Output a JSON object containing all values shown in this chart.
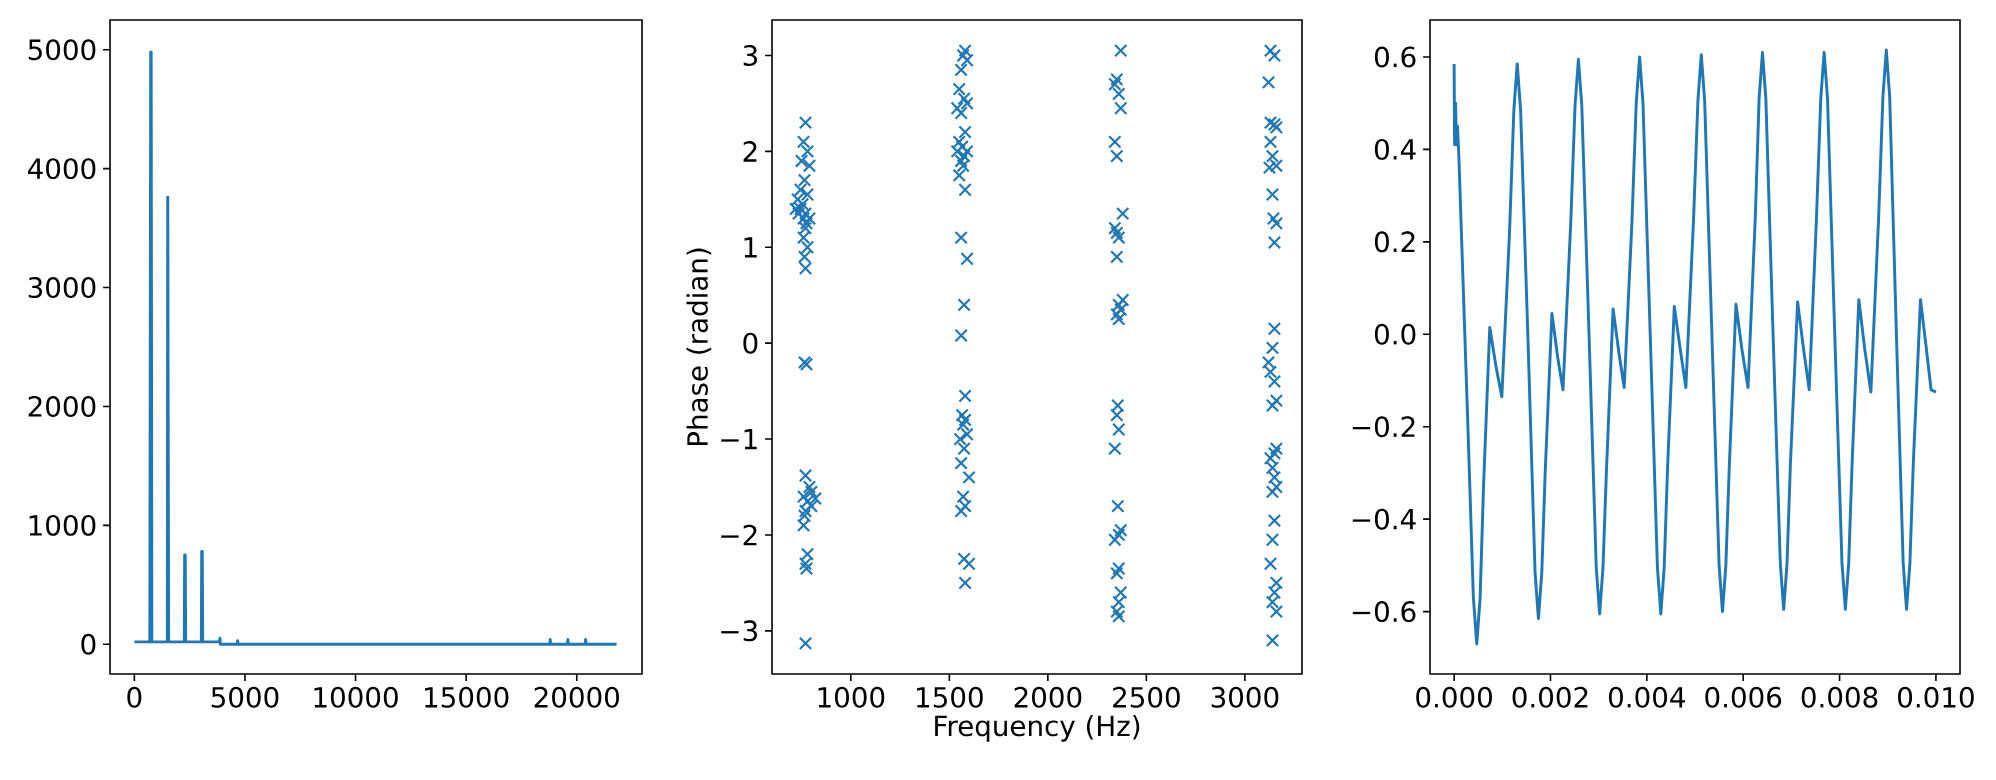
{
  "chart_data": [
    {
      "type": "line",
      "color": "#1f77b4",
      "xlim": [
        -1100,
        22950
      ],
      "ylim": [
        -250,
        5250
      ],
      "xticks": [
        0,
        5000,
        10000,
        15000,
        20000
      ],
      "yticks": [
        0,
        1000,
        2000,
        3000,
        4000,
        5000
      ],
      "x": [
        0,
        700,
        740,
        760,
        790,
        1490,
        1510,
        1530,
        1550,
        2260,
        2275,
        2300,
        2320,
        3030,
        3045,
        3070,
        3090,
        3850,
        3870,
        3890,
        4650,
        4670,
        4690,
        18780,
        18800,
        18820,
        19580,
        19600,
        19620,
        20380,
        20400,
        20420,
        21800
      ],
      "values": [
        20,
        20,
        4980,
        4980,
        20,
        20,
        3760,
        1700,
        20,
        20,
        750,
        750,
        20,
        20,
        780,
        780,
        20,
        20,
        50,
        0,
        0,
        30,
        0,
        0,
        40,
        0,
        0,
        40,
        0,
        0,
        40,
        0,
        0
      ]
    },
    {
      "type": "scatter",
      "marker": "cross",
      "xlabel": "Frequency (Hz)",
      "ylabel": "Phase (radian)",
      "xlim": [
        600,
        3290
      ],
      "ylim": [
        -3.45,
        3.37
      ],
      "xticks": [
        1000,
        1500,
        2000,
        2500,
        3000
      ],
      "yticks": [
        {
          "value": -3,
          "label": "−3"
        },
        {
          "value": -2,
          "label": "−2"
        },
        {
          "value": -1,
          "label": "−1"
        },
        0,
        1,
        2,
        3
      ],
      "series": [
        {
          "color": "#1f77b4",
          "x": [
            770,
            760,
            780,
            750,
            790,
            765,
            745,
            780,
            730,
            755,
            720,
            745,
            770,
            735,
            790,
            760,
            775,
            770,
            760,
            780,
            765,
            770,
            765,
            775,
            770,
            790,
            800,
            760,
            820,
            780,
            800,
            770,
            765,
            760,
            780,
            770,
            775,
            770,
            1580,
            1570,
            1590,
            1560,
            1550,
            1575,
            1590,
            1540,
            1560,
            1580,
            1550,
            1565,
            1590,
            1540,
            1575,
            1560,
            1570,
            1550,
            1580,
            1560,
            1590,
            1575,
            1560,
            1580,
            1565,
            1580,
            1570,
            1590,
            1555,
            1575,
            1560,
            1600,
            1570,
            1580,
            1560,
            1575,
            1600,
            1580,
            2370,
            2350,
            2340,
            2360,
            2370,
            2340,
            2350,
            2380,
            2340,
            2350,
            2360,
            2350,
            2380,
            2360,
            2370,
            2350,
            2360,
            2355,
            2350,
            2360,
            2340,
            2355,
            2370,
            2360,
            2340,
            2360,
            2350,
            2370,
            2360,
            2350,
            2360,
            3130,
            3150,
            3120,
            3130,
            3160,
            3150,
            3130,
            3140,
            3160,
            3125,
            3140,
            3145,
            3160,
            3150,
            3150,
            3140,
            3120,
            3130,
            3150,
            3160,
            3140,
            3160,
            3150,
            3130,
            3140,
            3150,
            3160,
            3140,
            3150,
            3140,
            3130,
            3160,
            3150,
            3140,
            3160,
            3140
          ],
          "values": [
            2.3,
            2.1,
            2.0,
            1.9,
            1.85,
            1.7,
            1.6,
            1.55,
            1.5,
            1.45,
            1.4,
            1.4,
            1.35,
            1.35,
            1.3,
            1.3,
            1.25,
            1.2,
            1.1,
            1.0,
            0.9,
            0.78,
            -0.2,
            -0.22,
            -1.38,
            -1.5,
            -1.55,
            -1.6,
            -1.62,
            -1.65,
            -1.7,
            -1.75,
            -1.8,
            -1.9,
            -2.2,
            -2.3,
            -2.35,
            -3.13,
            3.05,
            3.0,
            2.95,
            2.85,
            2.65,
            2.55,
            2.5,
            2.45,
            2.4,
            2.2,
            2.1,
            2.05,
            2.0,
            2.0,
            1.95,
            1.9,
            1.85,
            1.75,
            1.6,
            1.1,
            0.88,
            0.4,
            0.08,
            -0.55,
            -0.75,
            -0.8,
            -0.85,
            -0.95,
            -1.0,
            -1.1,
            -1.25,
            -1.4,
            -1.6,
            -1.7,
            -1.75,
            -2.25,
            -2.3,
            -2.5,
            3.05,
            2.75,
            2.7,
            2.6,
            2.45,
            2.1,
            1.95,
            1.35,
            1.2,
            1.15,
            1.1,
            0.9,
            0.45,
            0.4,
            0.35,
            0.3,
            0.25,
            -0.65,
            -0.75,
            -0.9,
            -1.1,
            -1.7,
            -1.95,
            -2.0,
            -2.05,
            -2.35,
            -2.4,
            -2.6,
            -2.7,
            -2.8,
            -2.85,
            3.05,
            3.0,
            2.72,
            2.3,
            2.25,
            2.28,
            2.1,
            1.95,
            1.85,
            1.83,
            1.55,
            1.3,
            1.25,
            1.05,
            0.15,
            -0.05,
            -0.2,
            -0.3,
            -0.4,
            -0.6,
            -0.65,
            -1.1,
            -1.15,
            -1.2,
            -1.3,
            -1.4,
            -1.5,
            -1.55,
            -1.85,
            -2.05,
            -2.3,
            -2.5,
            -2.6,
            -2.7,
            -2.8,
            -3.1
          ]
        }
      ]
    },
    {
      "type": "line",
      "color": "#1f77b4",
      "xlim": [
        -0.0005,
        0.0105
      ],
      "ylim": [
        -0.735,
        0.68
      ],
      "xticks": [
        {
          "value": 0,
          "label": "0.000"
        },
        0.002,
        0.004,
        0.006,
        0.008,
        {
          "value": 0.01,
          "label": "0.010"
        }
      ],
      "yticks": [
        {
          "value": -0.6,
          "label": "−0.6"
        },
        {
          "value": -0.4,
          "label": "−0.4"
        },
        {
          "value": -0.2,
          "label": "−0.2"
        },
        {
          "value": 0,
          "label": "0.0"
        },
        0.2,
        0.4,
        0.6
      ],
      "x": [
        0,
        1e-05,
        3e-05,
        5e-05,
        7e-05,
        0.0001,
        0.00028,
        0.0004,
        0.00047,
        0.00054,
        0.00061,
        0.00074,
        0.00087,
        0.00099,
        0.00115,
        0.00124,
        0.00131,
        0.00138,
        0.00153,
        0.00168,
        0.00175,
        0.00182,
        0.00189,
        0.00203,
        0.00215,
        0.00226,
        0.00242,
        0.00251,
        0.00258,
        0.00265,
        0.0028,
        0.00295,
        0.00302,
        0.00309,
        0.00316,
        0.0033,
        0.00342,
        0.00353,
        0.00369,
        0.00378,
        0.00385,
        0.00392,
        0.00407,
        0.00422,
        0.00429,
        0.00436,
        0.00443,
        0.00457,
        0.00469,
        0.00481,
        0.00497,
        0.00506,
        0.00513,
        0.0052,
        0.00535,
        0.0055,
        0.00557,
        0.00564,
        0.00571,
        0.00585,
        0.00597,
        0.0061,
        0.00625,
        0.00633,
        0.0064,
        0.00647,
        0.00662,
        0.00677,
        0.00684,
        0.00691,
        0.00698,
        0.00713,
        0.00725,
        0.00737,
        0.00752,
        0.00761,
        0.00768,
        0.00775,
        0.0079,
        0.00805,
        0.00812,
        0.00819,
        0.00826,
        0.0084,
        0.00852,
        0.00865,
        0.00881,
        0.0089,
        0.00897,
        0.00904,
        0.00918,
        0.00932,
        0.00939,
        0.00946,
        0.00953,
        0.00968,
        0.0098,
        0.0099,
        0.01
      ],
      "values": [
        0.585,
        0.41,
        0.5,
        0.41,
        0.45,
        0.38,
        -0.18,
        -0.57,
        -0.67,
        -0.57,
        -0.33,
        0.015,
        -0.07,
        -0.135,
        0.22,
        0.485,
        0.585,
        0.485,
        0,
        -0.515,
        -0.615,
        -0.515,
        -0.3,
        0.045,
        -0.05,
        -0.12,
        0.24,
        0.495,
        0.595,
        0.495,
        0,
        -0.505,
        -0.605,
        -0.505,
        -0.3,
        0.055,
        -0.04,
        -0.115,
        0.24,
        0.5,
        0.6,
        0.5,
        0,
        -0.505,
        -0.605,
        -0.505,
        -0.29,
        0.06,
        -0.03,
        -0.115,
        0.25,
        0.505,
        0.605,
        0.505,
        0,
        -0.5,
        -0.6,
        -0.5,
        -0.29,
        0.065,
        -0.03,
        -0.115,
        0.25,
        0.51,
        0.61,
        0.51,
        0,
        -0.495,
        -0.595,
        -0.495,
        -0.28,
        0.07,
        -0.03,
        -0.12,
        0.25,
        0.51,
        0.61,
        0.51,
        0,
        -0.495,
        -0.595,
        -0.495,
        -0.28,
        0.075,
        -0.03,
        -0.125,
        0.25,
        0.515,
        0.615,
        0.515,
        0,
        -0.495,
        -0.595,
        -0.495,
        -0.28,
        0.075,
        -0.03,
        -0.12,
        -0.125
      ]
    }
  ]
}
